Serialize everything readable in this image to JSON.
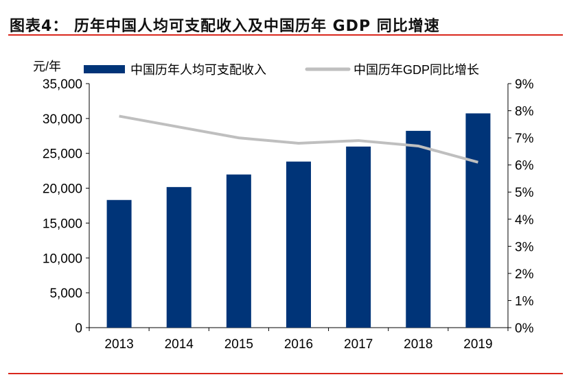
{
  "title": "图表4：  历年中国人均可支配收入及中国历年 GDP 同比增速",
  "colors": {
    "bar": "#003478",
    "line": "#bfbfbf",
    "rule": "#d9261c"
  },
  "chart_data": {
    "type": "bar+line",
    "categories": [
      "2013",
      "2014",
      "2015",
      "2016",
      "2017",
      "2018",
      "2019"
    ],
    "y_left_label": "元/年",
    "y_left_range": [
      0,
      35000
    ],
    "y_left_ticks": [
      "0",
      "5,000",
      "10,000",
      "15,000",
      "20,000",
      "25,000",
      "30,000",
      "35,000"
    ],
    "y_right_range": [
      0,
      9
    ],
    "y_right_ticks": [
      "0%",
      "1%",
      "2%",
      "3%",
      "4%",
      "5%",
      "6%",
      "7%",
      "8%",
      "9%"
    ],
    "legend_placement": "top",
    "grid": false,
    "series": [
      {
        "name": "中国历年人均可支配收入",
        "type": "bar",
        "axis": "left",
        "values": [
          18311,
          20167,
          21966,
          23821,
          25974,
          28228,
          30733
        ]
      },
      {
        "name": "中国历年GDP同比增长",
        "type": "line",
        "axis": "right",
        "values": [
          7.8,
          7.4,
          7.0,
          6.8,
          6.9,
          6.7,
          6.1
        ]
      }
    ]
  }
}
